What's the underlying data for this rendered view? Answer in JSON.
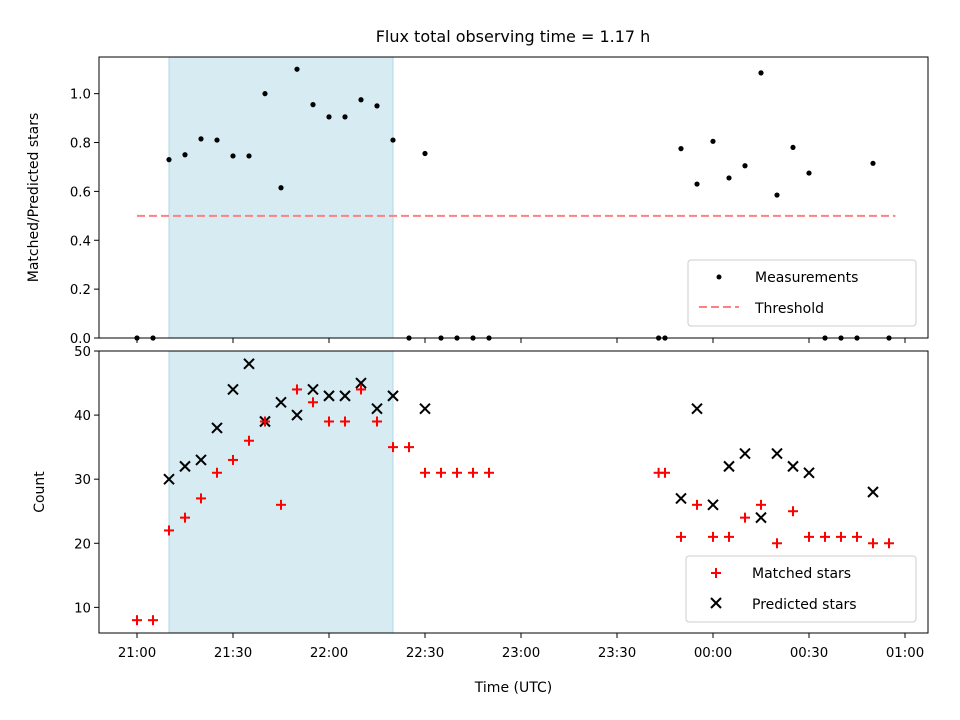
{
  "chart_data": [
    {
      "type": "scatter",
      "title": "Flux total observing time = 1.17 h",
      "ylabel": "Matched/Predicted stars",
      "xlabel": "",
      "ylim": [
        0,
        1.15
      ],
      "yticks": [
        "0.0",
        "0.2",
        "0.4",
        "0.6",
        "0.8",
        "1.0"
      ],
      "legend_position": "lower-right",
      "shaded_interval": [
        "21:10",
        "22:20"
      ],
      "threshold": {
        "name": "Threshold",
        "value": 0.5,
        "x_range": [
          "21:00",
          "00:57"
        ],
        "color": "#ff8080",
        "style": "dashed"
      },
      "series": [
        {
          "name": "Measurements",
          "marker": "dot",
          "color": "#000000",
          "points": [
            [
              "21:00",
              0.0
            ],
            [
              "21:05",
              0.0
            ],
            [
              "21:10",
              0.73
            ],
            [
              "21:15",
              0.75
            ],
            [
              "21:20",
              0.815
            ],
            [
              "21:25",
              0.81
            ],
            [
              "21:30",
              0.745
            ],
            [
              "21:35",
              0.745
            ],
            [
              "21:40",
              1.0
            ],
            [
              "21:45",
              0.615
            ],
            [
              "21:50",
              1.1
            ],
            [
              "21:55",
              0.955
            ],
            [
              "22:00",
              0.905
            ],
            [
              "22:05",
              0.905
            ],
            [
              "22:10",
              0.975
            ],
            [
              "22:15",
              0.95
            ],
            [
              "22:20",
              0.81
            ],
            [
              "22:25",
              0.0
            ],
            [
              "22:30",
              0.755
            ],
            [
              "22:35",
              0.0
            ],
            [
              "22:40",
              0.0
            ],
            [
              "22:45",
              0.0
            ],
            [
              "22:50",
              0.0
            ],
            [
              "23:43",
              0.0
            ],
            [
              "23:45",
              0.0
            ],
            [
              "23:50",
              0.775
            ],
            [
              "23:55",
              0.63
            ],
            [
              "00:00",
              0.805
            ],
            [
              "00:05",
              0.655
            ],
            [
              "00:10",
              0.705
            ],
            [
              "00:15",
              1.085
            ],
            [
              "00:20",
              0.585
            ],
            [
              "00:25",
              0.78
            ],
            [
              "00:30",
              0.675
            ],
            [
              "00:35",
              0.0
            ],
            [
              "00:40",
              0.0
            ],
            [
              "00:45",
              0.0
            ],
            [
              "00:50",
              0.715
            ],
            [
              "00:55",
              0.0
            ]
          ]
        }
      ]
    },
    {
      "type": "scatter",
      "title": "",
      "ylabel": "Count",
      "xlabel": "Time (UTC)",
      "ylim": [
        6,
        50
      ],
      "yticks": [
        "10",
        "20",
        "30",
        "40",
        "50"
      ],
      "xticks": [
        "21:00",
        "21:30",
        "22:00",
        "22:30",
        "23:00",
        "23:30",
        "00:00",
        "00:30",
        "01:00"
      ],
      "legend_position": "lower-right",
      "shaded_interval": [
        "21:10",
        "22:20"
      ],
      "series": [
        {
          "name": "Matched stars",
          "marker": "plus",
          "color": "#ff0000",
          "points": [
            [
              "21:00",
              8
            ],
            [
              "21:05",
              8
            ],
            [
              "21:10",
              22
            ],
            [
              "21:15",
              24
            ],
            [
              "21:20",
              27
            ],
            [
              "21:25",
              31
            ],
            [
              "21:30",
              33
            ],
            [
              "21:35",
              36
            ],
            [
              "21:40",
              39
            ],
            [
              "21:45",
              26
            ],
            [
              "21:50",
              44
            ],
            [
              "21:55",
              42
            ],
            [
              "22:00",
              39
            ],
            [
              "22:05",
              39
            ],
            [
              "22:10",
              44
            ],
            [
              "22:15",
              39
            ],
            [
              "22:20",
              35
            ],
            [
              "22:25",
              35
            ],
            [
              "22:30",
              31
            ],
            [
              "22:35",
              31
            ],
            [
              "22:40",
              31
            ],
            [
              "22:45",
              31
            ],
            [
              "22:50",
              31
            ],
            [
              "23:43",
              31
            ],
            [
              "23:45",
              31
            ],
            [
              "23:50",
              21
            ],
            [
              "23:55",
              26
            ],
            [
              "00:00",
              21
            ],
            [
              "00:05",
              21
            ],
            [
              "00:10",
              24
            ],
            [
              "00:15",
              26
            ],
            [
              "00:20",
              20
            ],
            [
              "00:25",
              25
            ],
            [
              "00:30",
              21
            ],
            [
              "00:35",
              21
            ],
            [
              "00:40",
              21
            ],
            [
              "00:45",
              21
            ],
            [
              "00:50",
              20
            ],
            [
              "00:55",
              20
            ]
          ]
        },
        {
          "name": "Predicted stars",
          "marker": "x",
          "color": "#000000",
          "points": [
            [
              "21:10",
              30
            ],
            [
              "21:15",
              32
            ],
            [
              "21:20",
              33
            ],
            [
              "21:25",
              38
            ],
            [
              "21:30",
              44
            ],
            [
              "21:35",
              48
            ],
            [
              "21:40",
              39
            ],
            [
              "21:45",
              42
            ],
            [
              "21:50",
              40
            ],
            [
              "21:55",
              44
            ],
            [
              "22:00",
              43
            ],
            [
              "22:05",
              43
            ],
            [
              "22:10",
              45
            ],
            [
              "22:15",
              41
            ],
            [
              "22:20",
              43
            ],
            [
              "22:30",
              41
            ],
            [
              "23:50",
              27
            ],
            [
              "23:55",
              41
            ],
            [
              "00:00",
              26
            ],
            [
              "00:05",
              32
            ],
            [
              "00:10",
              34
            ],
            [
              "00:15",
              24
            ],
            [
              "00:20",
              34
            ],
            [
              "00:25",
              32
            ],
            [
              "00:30",
              31
            ],
            [
              "00:50",
              28
            ]
          ]
        }
      ]
    }
  ]
}
